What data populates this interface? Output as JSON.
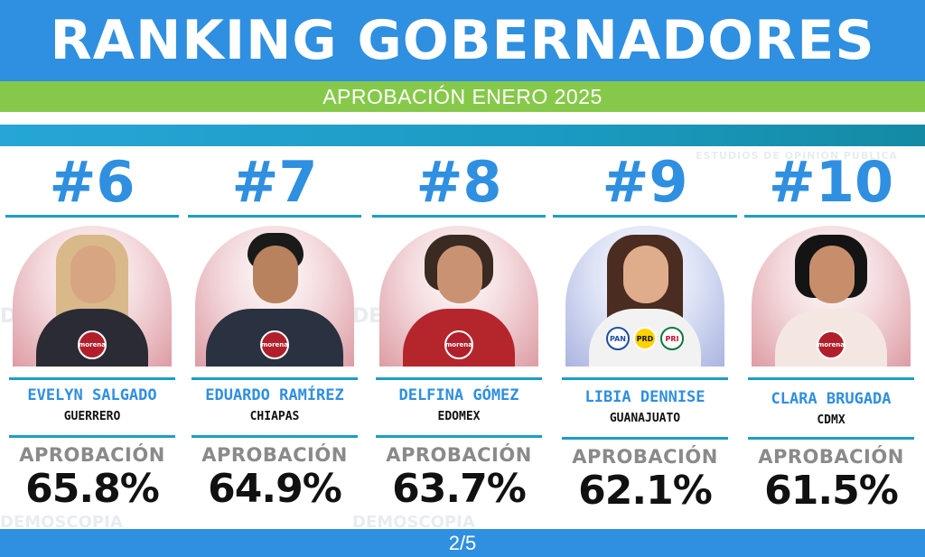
{
  "header": {
    "title": "RANKING GOBERNADORES"
  },
  "subtitle": "APROBACIÓN ENERO 2025",
  "watermark": {
    "brand": "DEMOSCOPIA",
    "tagline": "ESTUDIOS DE OPINIÓN PÚBLICA"
  },
  "approval_label": "APROBACIÓN",
  "governors": [
    {
      "rank": "#6",
      "name": "EVELYN SALGADO",
      "state": "GUERRERO",
      "approval": "65.8%",
      "party": "morena"
    },
    {
      "rank": "#7",
      "name": "EDUARDO RAMÍREZ",
      "state": "CHIAPAS",
      "approval": "64.9%",
      "party": "morena"
    },
    {
      "rank": "#8",
      "name": "DELFINA GÓMEZ",
      "state": "EDOMEX",
      "approval": "63.7%",
      "party": "morena"
    },
    {
      "rank": "#9",
      "name": "LIBIA DENNISE",
      "state": "GUANAJUATO",
      "approval": "62.1%",
      "parties": [
        "PAN",
        "PRD",
        "PRI"
      ]
    },
    {
      "rank": "#10",
      "name": "CLARA BRUGADA",
      "state": "CDMX",
      "approval": "61.5%",
      "party": "morena"
    }
  ],
  "colors": {
    "header_blue": "#2f8fe0",
    "subbar_green": "#86c94a",
    "stripe_teal": "#1b9bc2",
    "morena_red": "#b11f2c"
  },
  "footer": {
    "page": "2/5"
  }
}
